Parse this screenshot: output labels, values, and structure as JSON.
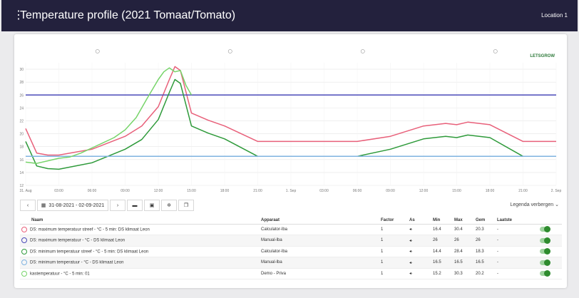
{
  "header": {
    "menu_icon": "⋮",
    "title": "Temperature profile (2021 Tomaat/Tomato)",
    "location": "Location 1"
  },
  "logo": {
    "text": "LETSGROW",
    "note": "logo"
  },
  "toolbar": {
    "prev_icon": "‹",
    "date_range": "31-08-2021 - 02-09-2021",
    "next_icon": "›",
    "legend_toggle": "Legenda verbergen"
  },
  "table": {
    "headers": [
      "Naam",
      "Apparaat",
      "Factor",
      "As",
      "Min",
      "Max",
      "Gem",
      "Laatste"
    ],
    "rows": [
      {
        "color": "#e8607a",
        "name": "DS: maximum temperatuur streef - °C - 5 min: DS klimaat Leon",
        "device": "Calculator-lba",
        "factor": "1",
        "axis": "◂·",
        "min": "16.4",
        "max": "30.4",
        "avg": "20.3",
        "last": "-"
      },
      {
        "color": "#4a4ab8",
        "name": "DS: maximum temperatuur - °C - DS klimaat Leon",
        "device": "Manual-lba",
        "factor": "1",
        "axis": "◂·",
        "min": "26",
        "max": "26",
        "avg": "26",
        "last": "-"
      },
      {
        "color": "#2e9a3a",
        "name": "DS: minimum temperatuur streef - °C - 5 min: DS klimaat Leon",
        "device": "Calculator-lba",
        "factor": "1",
        "axis": "◂·",
        "min": "14.4",
        "max": "28.4",
        "avg": "18.3",
        "last": "-"
      },
      {
        "color": "#7fb3e0",
        "name": "DS: minimum temperatuur - °C - DS klimaat Leon",
        "device": "Manual-lba",
        "factor": "1",
        "axis": "◂·",
        "min": "16.5",
        "max": "16.5",
        "avg": "16.5",
        "last": "-"
      },
      {
        "color": "#77d46a",
        "name": "kastemperatuur - °C - 5 min: 01",
        "device": "Demo - Priva",
        "factor": "1",
        "axis": "◂·",
        "min": "15.2",
        "max": "30.3",
        "avg": "20.2",
        "last": "-"
      }
    ]
  },
  "chart_data": {
    "type": "line",
    "x_tick_labels": [
      "31. Aug",
      "03:00",
      "06:00",
      "09:00",
      "12:00",
      "15:00",
      "18:00",
      "21:00",
      "1. Sep",
      "03:00",
      "06:00",
      "09:00",
      "12:00",
      "15:00",
      "18:00",
      "21:00",
      "2. Sep"
    ],
    "y_tick_labels": [
      "12",
      "14",
      "16",
      "18",
      "20",
      "22",
      "24",
      "26",
      "28",
      "30"
    ],
    "ylim": [
      12,
      31
    ],
    "x_range_hours": [
      0,
      48
    ],
    "series": [
      {
        "name": "DS: maximum temperatuur streef",
        "color": "#e8607a",
        "x": [
          0,
          1,
          2,
          3,
          6,
          9,
          10.5,
          12,
          13,
          13.5,
          14,
          15,
          16.5,
          18,
          21,
          24,
          30,
          33,
          36,
          38,
          39,
          40,
          42,
          45,
          48
        ],
        "y": [
          20.8,
          17,
          16.7,
          16.7,
          17.6,
          19.6,
          21.2,
          24.2,
          28.4,
          30.4,
          29.8,
          23.2,
          22.1,
          21.2,
          18.8,
          18.8,
          18.8,
          19.6,
          21.2,
          21.6,
          21.4,
          21.8,
          21.4,
          18.8,
          18.8
        ]
      },
      {
        "name": "DS: maximum temperatuur",
        "color": "#4a4ab8",
        "x": [
          0,
          48
        ],
        "y": [
          26,
          26
        ]
      },
      {
        "name": "DS: minimum temperatuur streef",
        "color": "#2e9a3a",
        "x": [
          0,
          1,
          2,
          3,
          6,
          9,
          10.5,
          12,
          13,
          13.5,
          14,
          15,
          16.5,
          18,
          21,
          24,
          30,
          33,
          36,
          38,
          39,
          40,
          42,
          45,
          48
        ],
        "y": [
          18.8,
          15,
          14.6,
          14.5,
          15.5,
          17.6,
          19.1,
          22.2,
          26.4,
          28.4,
          27.8,
          21.2,
          20.1,
          19.2,
          16.5,
          null,
          16.5,
          17.6,
          19.2,
          19.6,
          19.4,
          19.8,
          19.4,
          16.5,
          null
        ]
      },
      {
        "name": "DS: minimum temperatuur",
        "color": "#7fb3e0",
        "x": [
          0,
          48
        ],
        "y": [
          16.5,
          16.5
        ]
      },
      {
        "name": "kastemperatuur",
        "color": "#77d46a",
        "x": [
          0,
          1,
          2,
          3,
          4,
          5,
          6,
          7,
          8,
          9,
          10,
          11,
          12,
          12.5,
          13,
          13.5,
          14,
          14.5,
          15
        ],
        "y": [
          15.6,
          15.4,
          15.8,
          16.2,
          16.4,
          17.0,
          17.8,
          18.6,
          19.4,
          20.6,
          22.5,
          25.5,
          28.4,
          29.6,
          30.2,
          29.6,
          29.8,
          27.5,
          26.0
        ]
      }
    ]
  }
}
